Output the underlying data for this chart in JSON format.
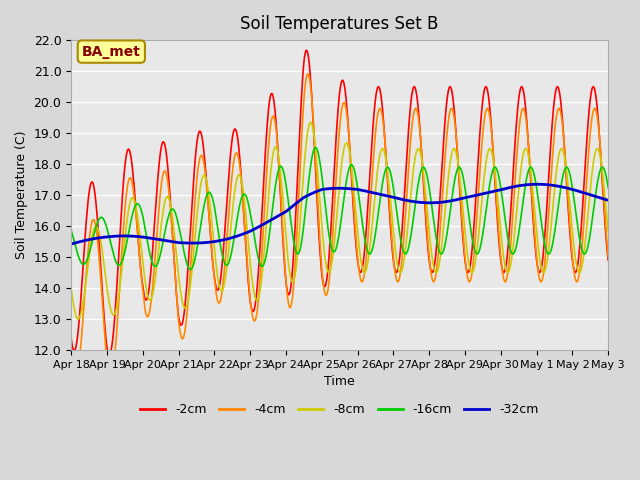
{
  "title": "Soil Temperatures Set B",
  "xlabel": "Time",
  "ylabel": "Soil Temperature (C)",
  "ylim": [
    12.0,
    22.0
  ],
  "yticks": [
    12.0,
    13.0,
    14.0,
    15.0,
    16.0,
    17.0,
    18.0,
    19.0,
    20.0,
    21.0,
    22.0
  ],
  "background_color": "#d8d8d8",
  "plot_bg_color": "#e8e8e8",
  "series_colors": {
    "-2cm": "#ff0000",
    "-4cm": "#ff8800",
    "-8cm": "#cccc00",
    "-16cm": "#00cc00",
    "-32cm": "#0000cc"
  },
  "annotation_text": "BA_met",
  "annotation_bg": "#ffff99",
  "annotation_border": "#aa8800",
  "annotation_text_color": "#880000",
  "xtick_labels": [
    "Apr 18",
    "Apr 19",
    "Apr 20",
    "Apr 21",
    "Apr 22",
    "Apr 23",
    "Apr 24",
    "Apr 25",
    "Apr 26",
    "Apr 27",
    "Apr 28",
    "Apr 29",
    "Apr 30",
    "May 1",
    "May 2",
    "May 3"
  ],
  "xtick_positions": [
    0,
    1,
    2,
    3,
    4,
    5,
    6,
    7,
    8,
    9,
    10,
    11,
    12,
    13,
    14,
    15
  ],
  "n_days": 15,
  "points_per_day": 48
}
